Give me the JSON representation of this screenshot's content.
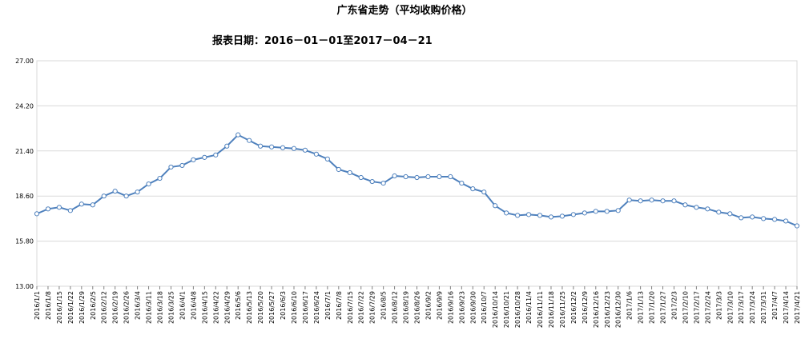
{
  "title": "广东省走势（平均收购价格）",
  "subtitle": "报表日期：2016－01－01至2017－04－21",
  "colors": {
    "series": "#4f81bd",
    "grid": "#d9d9d9",
    "axis": "#808080",
    "marker_fill": "#ffffff"
  },
  "chart_data": {
    "type": "line",
    "title": "广东省走势（平均收购价格）",
    "subtitle": "报表日期：2016－01－01至2017－04－21",
    "ylim": [
      13.0,
      27.0
    ],
    "yticks": [
      "13.00",
      "15.80",
      "18.60",
      "21.40",
      "24.20",
      "27.00"
    ],
    "grid": true,
    "x": [
      "2016/1/1",
      "2016/1/8",
      "2016/1/15",
      "2016/1/22",
      "2016/1/29",
      "2016/2/5",
      "2016/2/12",
      "2016/2/19",
      "2016/2/26",
      "2016/3/4",
      "2016/3/11",
      "2016/3/18",
      "2016/3/25",
      "2016/4/1",
      "2016/4/8",
      "2016/4/15",
      "2016/4/22",
      "2016/4/29",
      "2016/5/6",
      "2016/5/13",
      "2016/5/20",
      "2016/5/27",
      "2016/6/3",
      "2016/6/10",
      "2016/6/17",
      "2016/6/24",
      "2016/7/1",
      "2016/7/8",
      "2016/7/15",
      "2016/7/22",
      "2016/7/29",
      "2016/8/5",
      "2016/8/12",
      "2016/8/19",
      "2016/8/26",
      "2016/9/2",
      "2016/9/9",
      "2016/9/16",
      "2016/9/23",
      "2016/9/30",
      "2016/10/7",
      "2016/10/14",
      "2016/10/21",
      "2016/10/28",
      "2016/11/4",
      "2016/11/11",
      "2016/11/18",
      "2016/11/25",
      "2016/12/2",
      "2016/12/9",
      "2016/12/16",
      "2016/12/23",
      "2016/12/30",
      "2017/1/6",
      "2017/1/13",
      "2017/1/20",
      "2017/1/27",
      "2017/2/3",
      "2017/2/10",
      "2017/2/17",
      "2017/2/24",
      "2017/3/3",
      "2017/3/10",
      "2017/3/17",
      "2017/3/24",
      "2017/3/31",
      "2017/4/7",
      "2017/4/14",
      "2017/4/21"
    ],
    "values": [
      17.5,
      17.8,
      17.9,
      17.7,
      18.1,
      18.05,
      18.6,
      18.9,
      18.6,
      18.85,
      19.35,
      19.7,
      20.4,
      20.5,
      20.85,
      21.0,
      21.15,
      21.7,
      22.4,
      22.05,
      21.7,
      21.65,
      21.6,
      21.55,
      21.45,
      21.2,
      20.9,
      20.25,
      20.05,
      19.75,
      19.5,
      19.4,
      19.85,
      19.8,
      19.75,
      19.8,
      19.8,
      19.8,
      19.4,
      19.05,
      18.85,
      18.0,
      17.55,
      17.4,
      17.45,
      17.4,
      17.3,
      17.35,
      17.45,
      17.55,
      17.65,
      17.65,
      17.7,
      18.35,
      18.3,
      18.35,
      18.3,
      18.3,
      18.05,
      17.9,
      17.8,
      17.6,
      17.5,
      17.25,
      17.3,
      17.2,
      17.15,
      17.05,
      16.75
    ]
  }
}
